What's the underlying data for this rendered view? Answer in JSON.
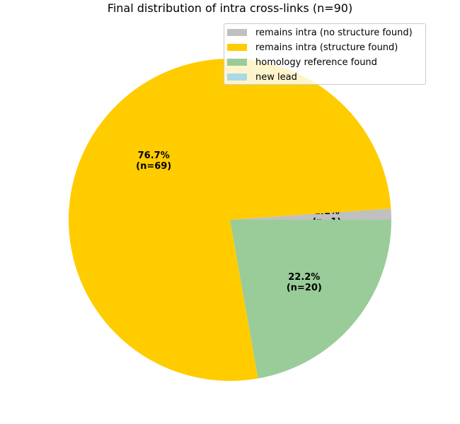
{
  "chart_data": {
    "type": "pie",
    "title": "Final distribution of intra cross-links (n=90)",
    "slices": [
      {
        "name": "remains intra (no structure found)",
        "value": 1,
        "color": "#c0c0c0",
        "label_pct": "1.1%",
        "label_n": "(n=1)"
      },
      {
        "name": "remains intra (structure found)",
        "value": 69,
        "color": "#ffcc00",
        "label_pct": "76.7%",
        "label_n": "(n=69)"
      },
      {
        "name": "homology reference found",
        "value": 20,
        "color": "#99cc99",
        "label_pct": "22.2%",
        "label_n": "(n=20)"
      },
      {
        "name": "new lead",
        "value": 0,
        "color": "#add8e6",
        "label_pct": "",
        "label_n": ""
      }
    ],
    "start_angle_deg": 0,
    "direction": "counterclockwise",
    "legend_position": "top-right"
  }
}
